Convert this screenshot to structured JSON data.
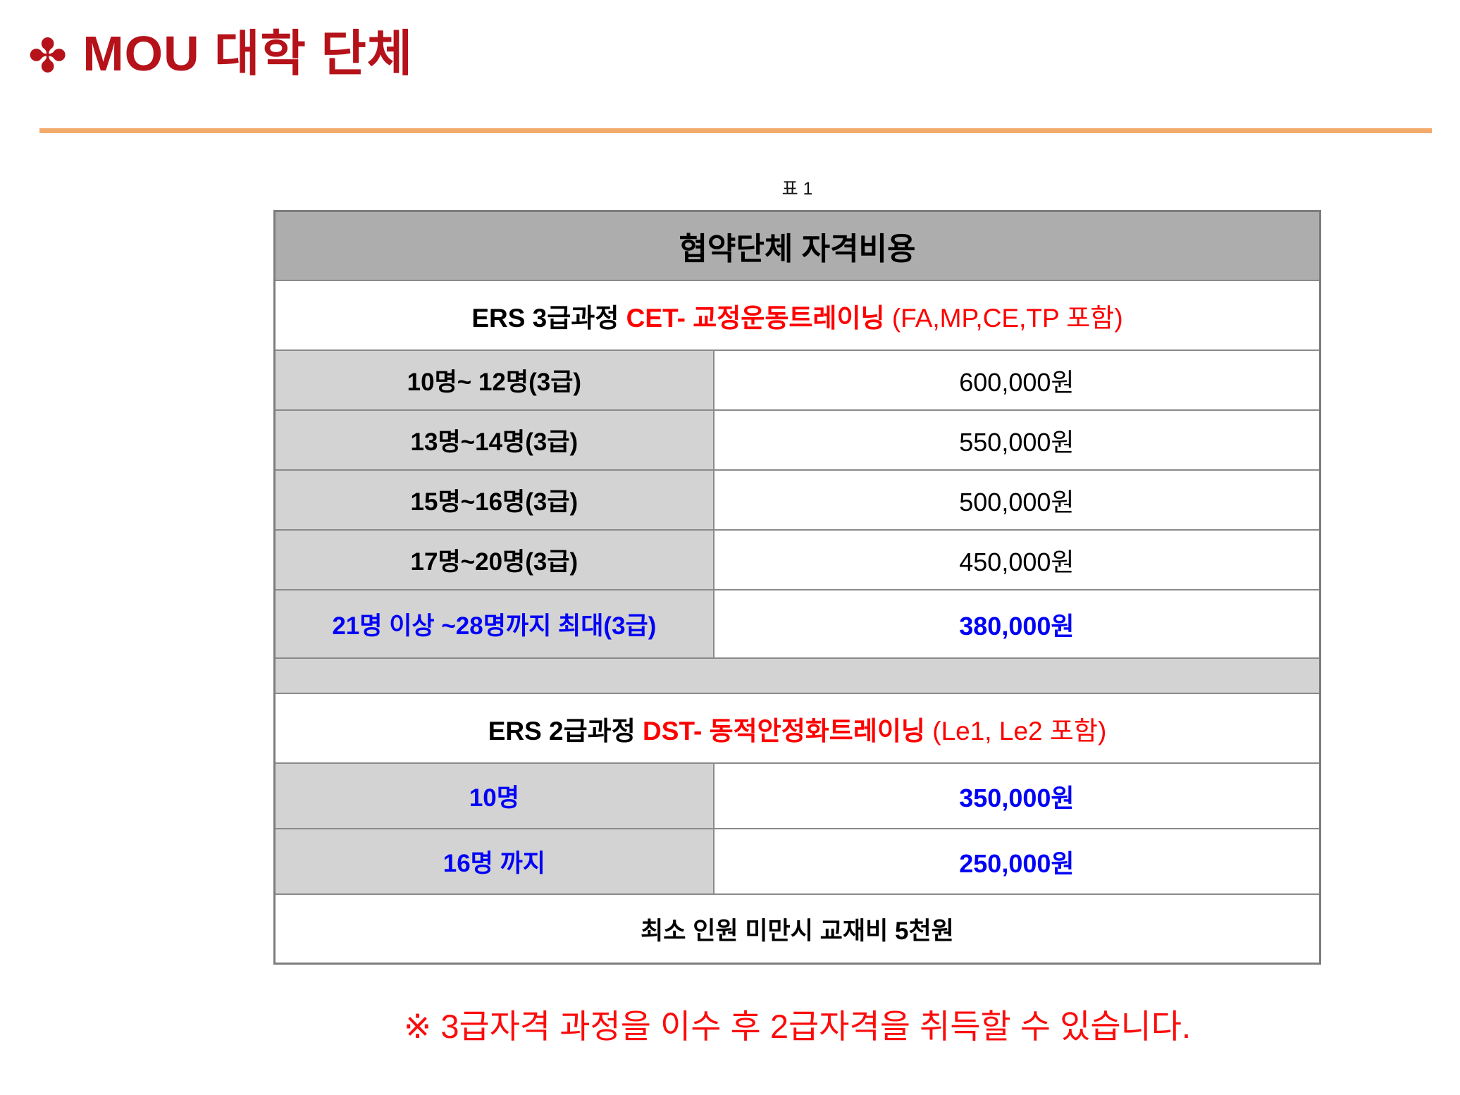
{
  "page": {
    "title_icon": "✤",
    "title": "MOU 대학 단체",
    "table_caption": "표 1"
  },
  "colors": {
    "title_red": "#b5121a",
    "divider_orange": "#f3aa6d",
    "header_gray": "#adadad",
    "cell_gray": "#d3d3d3",
    "border_gray": "#8a8a8a",
    "table_red_text": "#fe0000",
    "blue_text": "#0202f6",
    "note_red": "#fb0c0c"
  },
  "table": {
    "header": "협약단체 자격비용",
    "sections": [
      {
        "title_black": "ERS 3급과정 ",
        "title_red": "CET- 교정운동트레이닝 ",
        "title_paren": "(FA,MP,CE,TP 포함)",
        "rows": [
          {
            "label": "10명~ 12명(3급)",
            "price": "600,000원"
          },
          {
            "label": "13명~14명(3급)",
            "price": "550,000원"
          },
          {
            "label": "15명~16명(3급)",
            "price": "500,000원"
          },
          {
            "label": "17명~20명(3급)",
            "price": "450,000원"
          },
          {
            "label": "21명 이상 ~28명까지 최대(3급)",
            "price": "380,000원"
          }
        ]
      },
      {
        "title_black": "ERS 2급과정 ",
        "title_red": "DST- 동적안정화트레이닝 ",
        "title_paren": "(Le1, Le2 포함)",
        "rows": [
          {
            "label": "10명",
            "price": "350,000원"
          },
          {
            "label": "16명 까지",
            "price": "250,000원"
          }
        ]
      }
    ],
    "footer": "최소 인원 미만시 교재비 5천원"
  },
  "note": "※ 3급자격 과정을 이수 후 2급자격을 취득할 수 있습니다."
}
